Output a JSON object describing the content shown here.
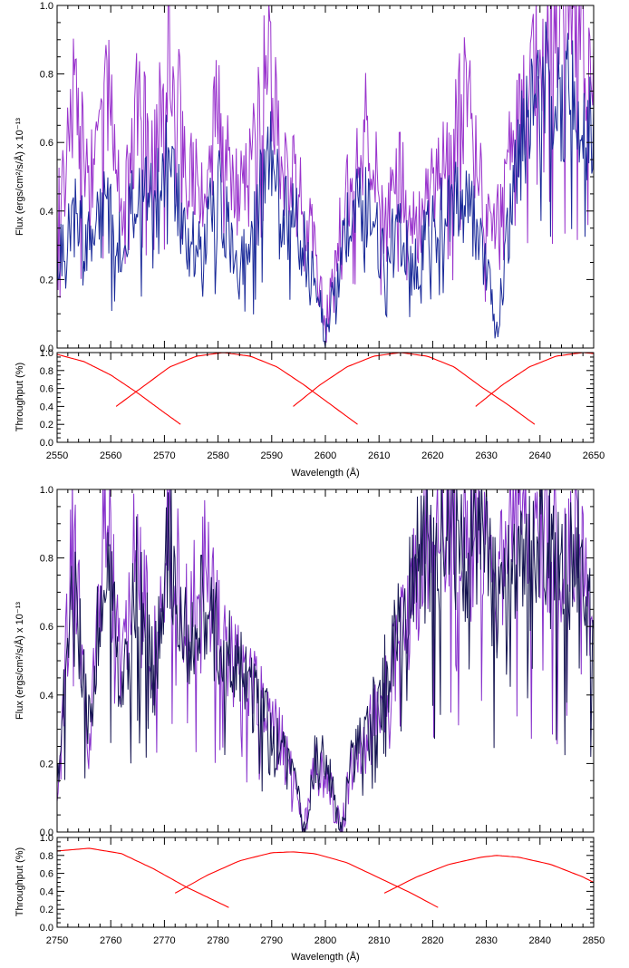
{
  "chart_data": [
    {
      "type": "line",
      "panel": "top-spectrum",
      "xlabel": "",
      "ylabel": "Flux (ergs/cm²/s/Å) x 10⁻¹³",
      "xlim": [
        2550,
        2650
      ],
      "ylim": [
        0.0,
        1.0
      ],
      "x_ticks": [
        2550,
        2560,
        2570,
        2580,
        2590,
        2600,
        2610,
        2620,
        2630,
        2640,
        2650
      ],
      "y_ticks": [
        "0.0",
        "0.2",
        "0.4",
        "0.6",
        "0.8",
        "1.0"
      ],
      "series": [
        {
          "color": "#9933cc",
          "x": [
            2550,
            2553,
            2556,
            2559,
            2562,
            2565,
            2568,
            2571,
            2574,
            2577,
            2580,
            2583,
            2586,
            2589,
            2592,
            2595,
            2598,
            2600,
            2602,
            2605,
            2608,
            2611,
            2614,
            2617,
            2620,
            2623,
            2626,
            2629,
            2632,
            2635,
            2638,
            2641,
            2644,
            2647,
            2650
          ],
          "values": [
            0.35,
            0.75,
            0.45,
            0.8,
            0.4,
            0.7,
            0.55,
            0.95,
            0.5,
            0.45,
            0.7,
            0.45,
            0.5,
            0.85,
            0.55,
            0.45,
            0.3,
            0.05,
            0.3,
            0.5,
            0.65,
            0.35,
            0.5,
            0.35,
            0.45,
            0.55,
            0.75,
            0.45,
            0.35,
            0.6,
            0.75,
            0.95,
            1.0,
            0.95,
            0.8
          ]
        },
        {
          "color": "#1a2a99",
          "x": [
            2550,
            2553,
            2556,
            2559,
            2562,
            2565,
            2568,
            2571,
            2574,
            2577,
            2580,
            2583,
            2586,
            2589,
            2592,
            2595,
            2598,
            2600,
            2602,
            2605,
            2608,
            2611,
            2614,
            2617,
            2620,
            2623,
            2626,
            2629,
            2632,
            2635,
            2638,
            2641,
            2644,
            2647,
            2650
          ],
          "values": [
            0.25,
            0.4,
            0.3,
            0.4,
            0.3,
            0.45,
            0.4,
            0.6,
            0.3,
            0.3,
            0.45,
            0.3,
            0.25,
            0.6,
            0.4,
            0.35,
            0.2,
            0.03,
            0.2,
            0.4,
            0.4,
            0.25,
            0.35,
            0.25,
            0.35,
            0.4,
            0.45,
            0.3,
            0.05,
            0.45,
            0.7,
            0.75,
            0.7,
            0.75,
            0.6
          ]
        }
      ]
    },
    {
      "type": "line",
      "panel": "top-throughput",
      "xlabel": "Wavelength (Å)",
      "ylabel": "Throughput (%)",
      "xlim": [
        2550,
        2650
      ],
      "ylim": [
        0.0,
        1.0
      ],
      "x_ticks": [
        2550,
        2560,
        2570,
        2580,
        2590,
        2600,
        2610,
        2620,
        2630,
        2640,
        2650
      ],
      "y_ticks": [
        "0.0",
        "0.2",
        "0.4",
        "0.6",
        "0.8",
        "1.0"
      ],
      "series": [
        {
          "color": "#ff0000",
          "center": 2547,
          "peak": 1.0,
          "x": [
            2550,
            2555,
            2560,
            2565,
            2570,
            2573
          ],
          "values": [
            0.98,
            0.9,
            0.75,
            0.55,
            0.33,
            0.2
          ]
        },
        {
          "color": "#ff0000",
          "center": 2581,
          "peak": 1.0,
          "x": [
            2561,
            2566,
            2571,
            2576,
            2581,
            2586,
            2591,
            2596,
            2601,
            2606
          ],
          "values": [
            0.4,
            0.62,
            0.84,
            0.96,
            1.0,
            0.96,
            0.84,
            0.64,
            0.42,
            0.2
          ]
        },
        {
          "color": "#ff0000",
          "center": 2614,
          "peak": 1.0,
          "x": [
            2594,
            2599,
            2604,
            2609,
            2614,
            2619,
            2624,
            2629,
            2634,
            2639
          ],
          "values": [
            0.4,
            0.64,
            0.84,
            0.96,
            1.0,
            0.96,
            0.84,
            0.62,
            0.42,
            0.2
          ]
        },
        {
          "color": "#ff0000",
          "center": 2648,
          "peak": 1.0,
          "x": [
            2628,
            2633,
            2638,
            2643,
            2648,
            2650
          ],
          "values": [
            0.4,
            0.64,
            0.84,
            0.96,
            1.0,
            0.99
          ]
        }
      ]
    },
    {
      "type": "line",
      "panel": "bottom-spectrum",
      "xlabel": "",
      "ylabel": "Flux (ergs/cm²/s/Å) x 10⁻¹³",
      "xlim": [
        2750,
        2850
      ],
      "ylim": [
        0.0,
        1.0
      ],
      "x_ticks": [
        2750,
        2760,
        2770,
        2780,
        2790,
        2800,
        2810,
        2820,
        2830,
        2840,
        2850
      ],
      "y_ticks": [
        "0.0",
        "0.2",
        "0.4",
        "0.6",
        "0.8",
        "1.0"
      ],
      "series": [
        {
          "color": "#8833cc",
          "x": [
            2750,
            2753,
            2756,
            2759,
            2762,
            2765,
            2768,
            2771,
            2774,
            2777,
            2780,
            2783,
            2786,
            2789,
            2792,
            2795,
            2796,
            2798,
            2800,
            2803,
            2805,
            2808,
            2811,
            2814,
            2817,
            2820,
            2823,
            2826,
            2829,
            2832,
            2835,
            2838,
            2841,
            2844,
            2847,
            2850
          ],
          "values": [
            0.1,
            0.9,
            0.2,
            1.0,
            0.4,
            0.9,
            0.5,
            0.95,
            0.6,
            0.8,
            0.6,
            0.5,
            0.45,
            0.35,
            0.25,
            0.12,
            0.0,
            0.18,
            0.2,
            0.0,
            0.2,
            0.28,
            0.4,
            0.55,
            0.75,
            0.85,
            0.95,
            0.8,
            0.9,
            0.7,
            0.95,
            0.85,
            0.9,
            0.75,
            0.95,
            0.5
          ]
        },
        {
          "color": "#141450",
          "x": [
            2750,
            2753,
            2756,
            2759,
            2762,
            2765,
            2768,
            2771,
            2774,
            2777,
            2780,
            2783,
            2786,
            2789,
            2792,
            2795,
            2796,
            2798,
            2800,
            2803,
            2805,
            2808,
            2811,
            2814,
            2817,
            2820,
            2823,
            2826,
            2829,
            2832,
            2835,
            2838,
            2841,
            2844,
            2847,
            2850
          ],
          "values": [
            0.15,
            0.7,
            0.3,
            0.85,
            0.35,
            0.75,
            0.45,
            0.85,
            0.55,
            0.7,
            0.55,
            0.48,
            0.42,
            0.33,
            0.22,
            0.1,
            0.0,
            0.2,
            0.22,
            0.0,
            0.22,
            0.3,
            0.45,
            0.6,
            0.8,
            0.85,
            0.85,
            0.8,
            0.85,
            0.7,
            0.85,
            0.8,
            0.85,
            0.7,
            0.85,
            0.55
          ]
        }
      ]
    },
    {
      "type": "line",
      "panel": "bottom-throughput",
      "xlabel": "Wavelength (Å)",
      "ylabel": "Throughput (%)",
      "xlim": [
        2750,
        2850
      ],
      "ylim": [
        0.0,
        1.0
      ],
      "x_ticks": [
        2750,
        2760,
        2770,
        2780,
        2790,
        2800,
        2810,
        2820,
        2830,
        2840,
        2850
      ],
      "y_ticks": [
        "0.0",
        "0.2",
        "0.4",
        "0.6",
        "0.8",
        "1.0"
      ],
      "series": [
        {
          "color": "#ff0000",
          "center": 2756,
          "peak": 0.88,
          "x": [
            2750,
            2756,
            2762,
            2768,
            2774,
            2782
          ],
          "values": [
            0.85,
            0.88,
            0.82,
            0.65,
            0.45,
            0.22
          ]
        },
        {
          "color": "#ff0000",
          "center": 2794,
          "peak": 0.84,
          "x": [
            2772,
            2778,
            2784,
            2790,
            2794,
            2798,
            2804,
            2810,
            2816,
            2821
          ],
          "values": [
            0.38,
            0.58,
            0.74,
            0.83,
            0.84,
            0.82,
            0.72,
            0.55,
            0.38,
            0.22
          ]
        },
        {
          "color": "#ff0000",
          "center": 2832,
          "peak": 0.8,
          "x": [
            2811,
            2817,
            2823,
            2829,
            2832,
            2836,
            2842,
            2848,
            2850
          ],
          "values": [
            0.38,
            0.56,
            0.7,
            0.78,
            0.8,
            0.78,
            0.7,
            0.56,
            0.5
          ]
        }
      ]
    }
  ]
}
